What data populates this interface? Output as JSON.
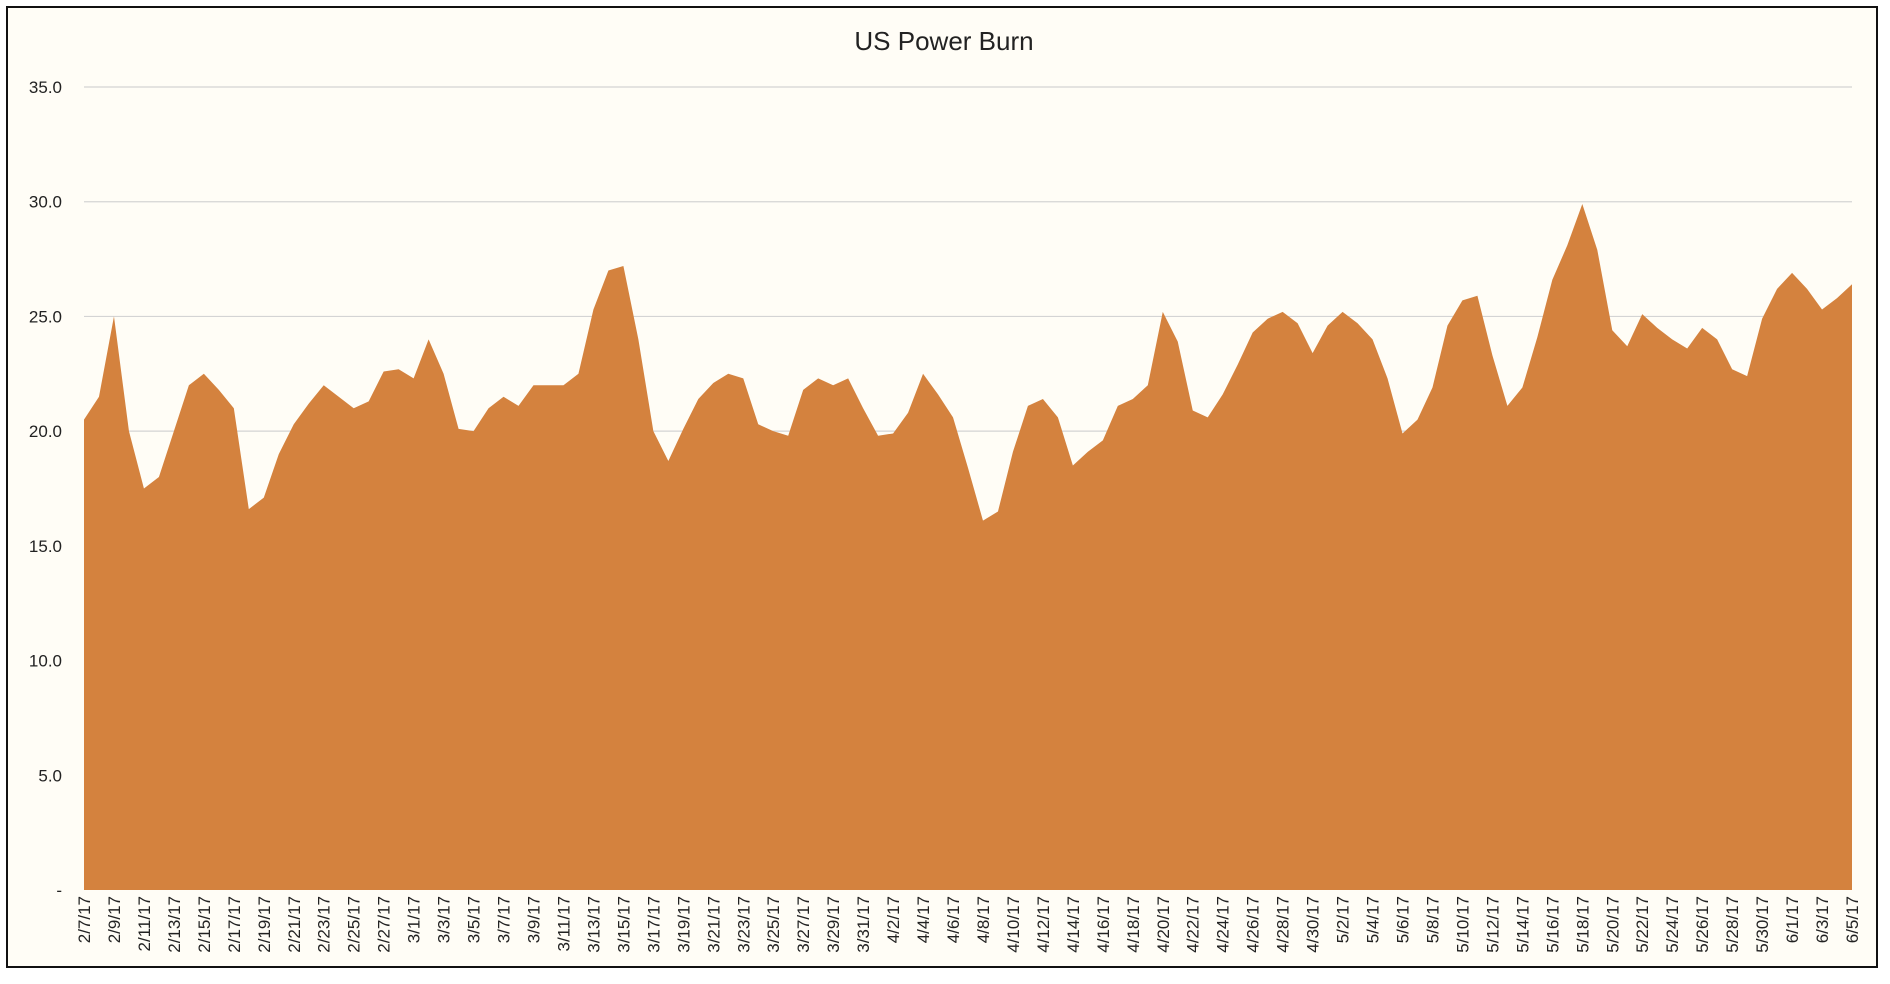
{
  "chart_data": {
    "type": "area",
    "title": "US Power Burn",
    "xlabel": "",
    "ylabel": "",
    "ylim": [
      0,
      35
    ],
    "grid": "horizontal",
    "legend": "none",
    "colors": {
      "area": "#d4823e",
      "grid": "#d4d4d4",
      "background": "#fffdf6",
      "border": "#111111"
    },
    "y_ticks": [
      {
        "value": 0,
        "label": "-"
      },
      {
        "value": 5,
        "label": "5.0"
      },
      {
        "value": 10,
        "label": "10.0"
      },
      {
        "value": 15,
        "label": "15.0"
      },
      {
        "value": 20,
        "label": "20.0"
      },
      {
        "value": 25,
        "label": "25.0"
      },
      {
        "value": 30,
        "label": "30.0"
      },
      {
        "value": 35,
        "label": "35.0"
      }
    ],
    "x_tick_labels": [
      "2/7/17",
      "2/9/17",
      "2/11/17",
      "2/13/17",
      "2/15/17",
      "2/17/17",
      "2/19/17",
      "2/21/17",
      "2/23/17",
      "2/25/17",
      "2/27/17",
      "3/1/17",
      "3/3/17",
      "3/5/17",
      "3/7/17",
      "3/9/17",
      "3/11/17",
      "3/13/17",
      "3/15/17",
      "3/17/17",
      "3/19/17",
      "3/21/17",
      "3/23/17",
      "3/25/17",
      "3/27/17",
      "3/29/17",
      "3/31/17",
      "4/2/17",
      "4/4/17",
      "4/6/17",
      "4/8/17",
      "4/10/17",
      "4/12/17",
      "4/14/17",
      "4/16/17",
      "4/18/17",
      "4/20/17",
      "4/22/17",
      "4/24/17",
      "4/26/17",
      "4/28/17",
      "4/30/17",
      "5/2/17",
      "5/4/17",
      "5/6/17",
      "5/8/17",
      "5/10/17",
      "5/12/17",
      "5/14/17",
      "5/16/17",
      "5/18/17",
      "5/20/17",
      "5/22/17",
      "5/24/17",
      "5/26/17",
      "5/28/17",
      "5/30/17",
      "6/1/17",
      "6/3/17",
      "6/5/17"
    ],
    "x_start": "2/7/17",
    "x_end": "6/5/17",
    "series": [
      {
        "values": [
          20.5,
          21.5,
          25.0,
          20.0,
          17.5,
          18.0,
          20.0,
          22.0,
          22.5,
          21.8,
          21.0,
          16.6,
          17.1,
          19.0,
          20.3,
          21.2,
          22.0,
          21.5,
          21.0,
          21.3,
          22.6,
          22.7,
          22.3,
          24.0,
          22.5,
          20.1,
          20.0,
          21.0,
          21.5,
          21.1,
          22.0,
          22.0,
          22.0,
          22.5,
          25.3,
          27.0,
          27.2,
          24.0,
          20.0,
          18.7,
          20.1,
          21.4,
          22.1,
          22.5,
          22.3,
          20.3,
          20.0,
          19.8,
          21.8,
          22.3,
          22.0,
          22.3,
          21.0,
          19.8,
          19.9,
          20.8,
          22.5,
          21.6,
          20.6,
          18.4,
          16.1,
          16.5,
          19.1,
          21.1,
          21.4,
          20.6,
          18.5,
          19.1,
          19.6,
          21.1,
          21.4,
          22.0,
          25.2,
          23.9,
          20.9,
          20.6,
          21.6,
          22.9,
          24.3,
          24.9,
          25.2,
          24.7,
          23.4,
          24.6,
          25.2,
          24.7,
          24.0,
          22.3,
          19.9,
          20.5,
          21.9,
          24.6,
          25.7,
          25.9,
          23.3,
          21.1,
          21.9,
          24.1,
          26.6,
          28.1,
          29.9,
          27.9,
          24.4,
          23.7,
          25.1,
          24.5,
          24.0,
          23.6,
          24.5,
          24.0,
          22.7,
          22.4,
          24.9,
          26.2,
          26.9,
          26.2,
          25.3,
          25.8,
          26.4
        ]
      }
    ]
  }
}
